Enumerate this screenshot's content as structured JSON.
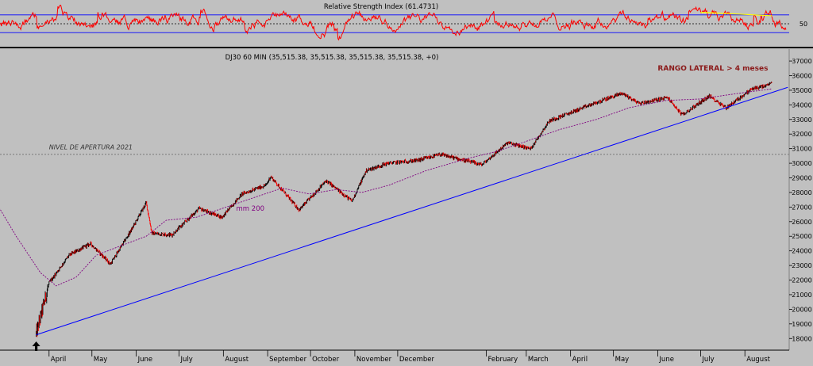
{
  "chart_data": [
    {
      "type": "line",
      "title": "Relative Strength Index (61.4731)",
      "indicator": "RSI",
      "current_value": 61.4731,
      "reference_levels": [
        30,
        50,
        70
      ],
      "tick_labels": [
        "50"
      ],
      "ylim": [
        0,
        100
      ],
      "colors": {
        "line": "#ff0000",
        "bands": "#0000ff",
        "midline": "#000000",
        "trend": "#ffff00"
      },
      "trend_annotation": {
        "x": [
          "2021-07-01",
          "2021-08-20"
        ],
        "y": [
          76,
          68
        ]
      }
    },
    {
      "type": "line",
      "title": "DJ30 60 MIN (35,515.38, 35,515.38, 35,515.38, 35,515.38, +0)",
      "ylim": [
        17200,
        37600
      ],
      "y_ticks": [
        "18000",
        "19000",
        "20000",
        "21000",
        "22000",
        "23000",
        "24000",
        "25000",
        "26000",
        "27000",
        "28000",
        "29000",
        "30000",
        "31000",
        "32000",
        "33000",
        "34000",
        "35000",
        "36000",
        "37000"
      ],
      "x_labels": [
        "April",
        "May",
        "June",
        "July",
        "August",
        "September",
        "October",
        "November",
        "December",
        "2021",
        "February",
        "March",
        "April",
        "May",
        "June",
        "July",
        "August"
      ],
      "grid": false,
      "colors": {
        "candles_up": "#000000",
        "candles_down": "#ff0000",
        "ma": "#800080",
        "trendline": "#0000ff",
        "level": "#606060",
        "arrow": "#000000"
      },
      "series": [
        {
          "name": "DJ30",
          "x": [
            "2020-03-23",
            "2020-04-01",
            "2020-04-15",
            "2020-04-30",
            "2020-05-14",
            "2020-05-29",
            "2020-06-08",
            "2020-06-12",
            "2020-06-26",
            "2020-07-15",
            "2020-07-31",
            "2020-08-14",
            "2020-08-31",
            "2020-09-03",
            "2020-09-23",
            "2020-10-12",
            "2020-10-30",
            "2020-11-09",
            "2020-11-24",
            "2020-12-15",
            "2020-12-31",
            "2021-01-29",
            "2021-02-16",
            "2021-03-04",
            "2021-03-17",
            "2021-04-15",
            "2021-05-07",
            "2021-05-19",
            "2021-06-08",
            "2021-06-18",
            "2021-07-07",
            "2021-07-19",
            "2021-08-06",
            "2021-08-16",
            "2021-08-20"
          ],
          "values": [
            18300,
            21800,
            23700,
            24500,
            23100,
            25500,
            27300,
            25200,
            25100,
            26900,
            26300,
            27900,
            28500,
            29100,
            26800,
            28800,
            27400,
            29500,
            30000,
            30200,
            30600,
            29900,
            31400,
            31000,
            32900,
            34000,
            34800,
            34100,
            34500,
            33300,
            34600,
            33800,
            35100,
            35300,
            35515
          ]
        },
        {
          "name": "mm 200",
          "x": [
            "2020-02-24",
            "2020-03-09",
            "2020-03-26",
            "2020-04-06",
            "2020-04-20",
            "2020-05-04",
            "2020-05-20",
            "2020-06-08",
            "2020-06-22",
            "2020-07-13",
            "2020-08-03",
            "2020-08-24",
            "2020-09-11",
            "2020-09-30",
            "2020-10-19",
            "2020-11-06",
            "2020-11-25",
            "2020-12-21",
            "2021-01-18",
            "2021-02-08",
            "2021-03-01",
            "2021-03-24",
            "2021-04-19",
            "2021-05-12",
            "2021-06-07",
            "2021-06-30",
            "2021-07-21",
            "2021-08-20"
          ],
          "values": [
            27300,
            25000,
            22500,
            21600,
            22200,
            23700,
            24300,
            25000,
            26100,
            26300,
            27000,
            27700,
            28300,
            27900,
            28200,
            28000,
            28500,
            29500,
            30300,
            30800,
            31500,
            32300,
            33000,
            33800,
            34300,
            34400,
            34700,
            35100
          ]
        }
      ],
      "annotations": [
        {
          "text": "RANGO LATERAL > 4 meses",
          "x": "2021-06-01",
          "y": 36350
        },
        {
          "text": "NIVEL DE APERTURA 2021",
          "x": "2020-04-01",
          "y": 30950
        },
        {
          "text": "mm 200",
          "x": "2020-08-10",
          "y": 26750
        }
      ],
      "reference_levels": [
        {
          "y": 30606,
          "style": "dashed"
        }
      ],
      "trendline": {
        "x": [
          "2020-03-23",
          "2021-08-31"
        ],
        "y": [
          18250,
          35200
        ]
      },
      "arrow_marker": {
        "x": "2020-03-23",
        "y": 17800,
        "direction": "up"
      }
    }
  ]
}
